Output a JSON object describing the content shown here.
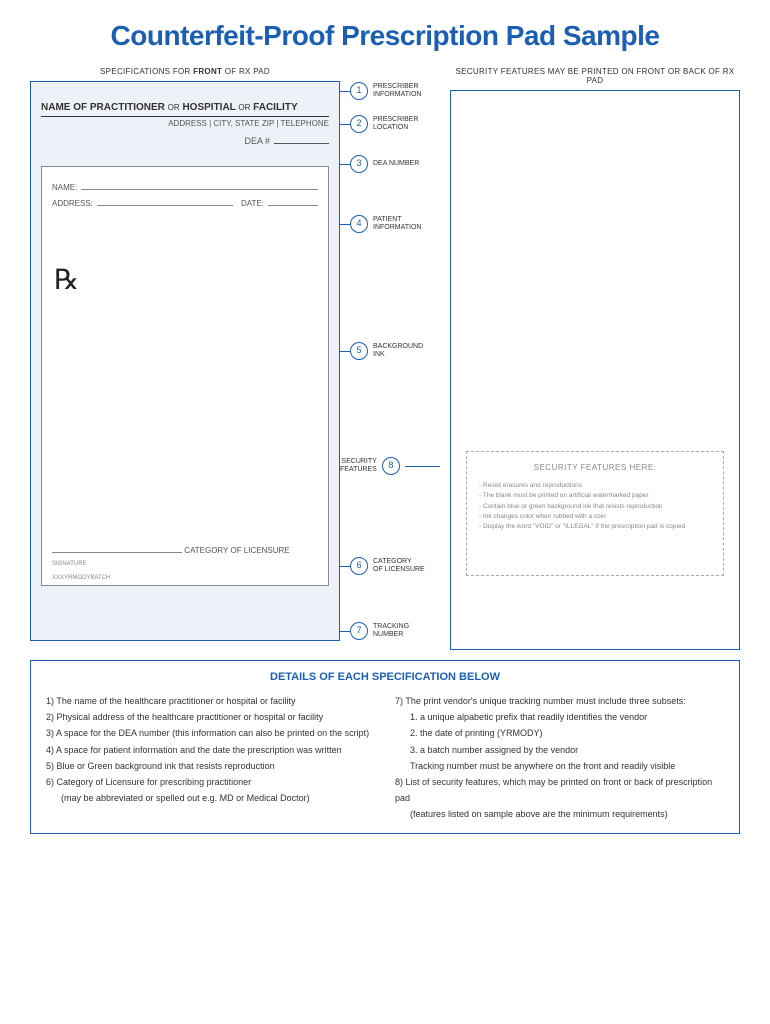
{
  "title": "Counterfeit-Proof Prescription Pad Sample",
  "leftHeader": "SPECIFICATIONS FOR FRONT OF RX PAD",
  "rightHeader": "SECURITY FEATURES MAY BE PRINTED ON FRONT OR BACK OF RX PAD",
  "pad": {
    "practitioner": "NAME OF PRACTITIONER",
    "or": "OR",
    "hospital": "HOSPITIAL",
    "facility": "FACILITY",
    "address": "ADDRESS | CITY, STATE ZIP | TELEPHONE",
    "dea": "DEA #",
    "name": "NAME:",
    "addr": "ADDRESS:",
    "date": "DATE:",
    "rx": "℞",
    "catLic": "CATEGORY OF LICENSURE",
    "sig": "SIGNATURE",
    "track": "XXXYRMODYBATCH"
  },
  "callouts": {
    "c1": "PRESCRIBER\nINFORMATION",
    "c2": "PRESCRIBER\nLOCATION",
    "c3": "DEA NUMBER",
    "c4": "PATIENT\nINFORMATION",
    "c5": "BACKGROUND\nINK",
    "c6": "CATEGORY\nOF LICENSURE",
    "c7": "TRACKING\nNUMBER",
    "c8": "SECURITY\nFEATURES"
  },
  "secBox": {
    "title": "SECURITY FEATURES HERE:",
    "i1": "- Resist erasures and reproductions",
    "i2": "- The blank must be printed on artificial watermarked paper",
    "i3": "- Contain blue or green background ink that resists reproduction",
    "i4": "- Ink changes color when rubbed with a coin",
    "i5": "- Display the word \"VOID\" or \"ILLEGAL\" if the prescription pad is copied"
  },
  "details": {
    "title": "DETAILS OF EACH SPECIFICATION BELOW",
    "d1": "1)  The name of the healthcare practitioner or hospital or facility",
    "d2": "2)  Physical address of the healthcare practitioner or hospital or facility",
    "d3": "3)  A space for the DEA number (this information can also be printed on the script)",
    "d4": "4)  A space for patient information and the date the prescription was written",
    "d5": "5)  Blue or Green background ink that resists reproduction",
    "d6": "6)  Category of Licensure for prescribing practitioner",
    "d6b": "(may be abbreviated or spelled out e.g. MD or Medical Doctor)",
    "d7": "7)  The print vendor's unique tracking number must include three subsets:",
    "d7a": "1. a unique alpabetic prefix that readily identifies the vendor",
    "d7b": "2. the date of printing (YRMODY)",
    "d7c": "3. a batch number assigned by the vendor",
    "d7d": "Tracking number must be anywhere on the front and readily visible",
    "d8": "8) List of security features, which may be printed on front or back of prescription pad",
    "d8b": "(features listed on sample above are the minimum requirements)"
  }
}
